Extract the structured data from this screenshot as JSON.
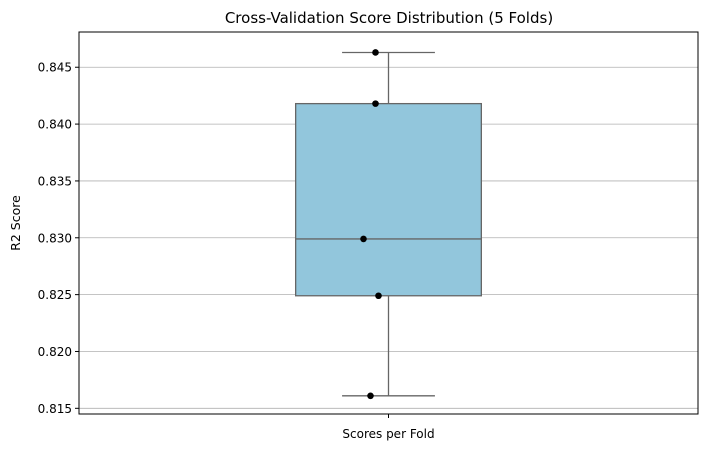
{
  "chart_data": {
    "type": "box",
    "title": "Cross-Validation Score Distribution (5 Folds)",
    "xlabel": "Scores per Fold",
    "ylabel": "R2 Score",
    "category": "Scores per Fold",
    "ylim": [
      0.8145,
      0.8481
    ],
    "yticks": [
      0.815,
      0.82,
      0.825,
      0.83,
      0.835,
      0.84,
      0.845
    ],
    "ytick_labels": [
      "0.815",
      "0.820",
      "0.825",
      "0.830",
      "0.835",
      "0.840",
      "0.845"
    ],
    "grid": "horizontal",
    "box": {
      "whisker_low": 0.8161,
      "q1": 0.8249,
      "median": 0.8299,
      "q3": 0.8418,
      "whisker_high": 0.8463,
      "fill": "#92c6dc",
      "edge": "#666666"
    },
    "points": [
      {
        "fold": 1,
        "value": 0.8463
      },
      {
        "fold": 2,
        "value": 0.8418
      },
      {
        "fold": 3,
        "value": 0.8299
      },
      {
        "fold": 4,
        "value": 0.8249
      },
      {
        "fold": 5,
        "value": 0.8161
      }
    ],
    "point_color": "#000000"
  }
}
